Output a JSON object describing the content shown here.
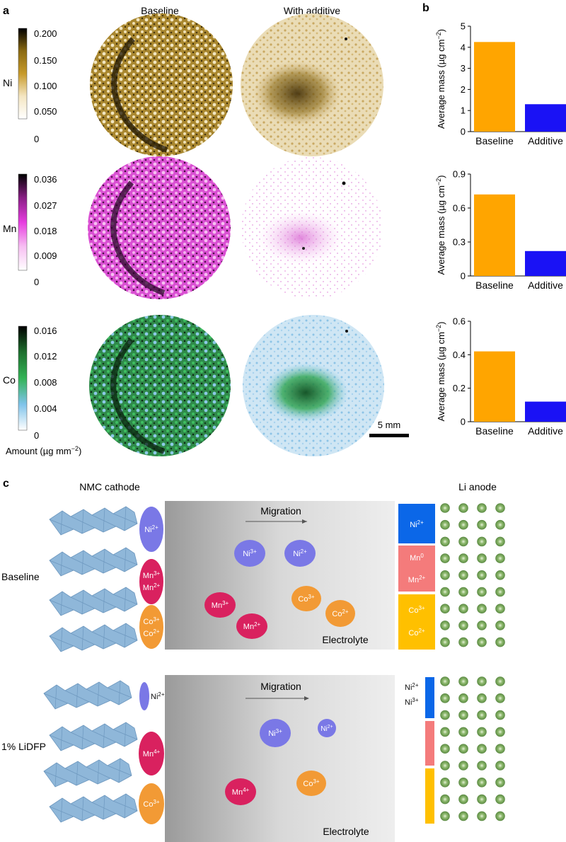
{
  "panel_labels": {
    "a": "a",
    "b": "b",
    "c": "c"
  },
  "panel_a": {
    "col_headers": [
      "Baseline",
      "With additive"
    ],
    "rows": [
      {
        "element": "Ni",
        "ticks": [
          "0.200",
          "0.150",
          "0.100",
          "0.050",
          "0"
        ],
        "colors": [
          "#000000",
          "#8a6a12",
          "#c79a2a",
          "#f4e6c2",
          "#ffffff"
        ]
      },
      {
        "element": "Mn",
        "ticks": [
          "0.036",
          "0.027",
          "0.018",
          "0.009",
          "0"
        ],
        "colors": [
          "#000000",
          "#8a1f86",
          "#e63cdf",
          "#f7bdf2",
          "#ffffff"
        ]
      },
      {
        "element": "Co",
        "ticks": [
          "0.016",
          "0.012",
          "0.008",
          "0.004",
          "0"
        ],
        "colors": [
          "#000000",
          "#1e6f2e",
          "#33b356",
          "#7fc3ea",
          "#ffffff"
        ]
      }
    ],
    "colorbar_title": "Amount (µg mm",
    "colorbar_title_sup": "−2",
    "colorbar_title_end": ")",
    "scale_bar": "5 mm"
  },
  "chart_data": [
    {
      "type": "bar",
      "categories": [
        "Baseline",
        "Additive"
      ],
      "values": [
        4.25,
        1.3
      ],
      "ylabel": "Average mass (µg cm",
      "ylabel_sup": "−2",
      "ylabel_end": ")",
      "ylim": [
        0,
        5
      ],
      "yticks": [
        "0",
        "1",
        "2",
        "3",
        "4",
        "5"
      ],
      "colors": [
        "#ffa500",
        "#1a12f5"
      ],
      "grid": false
    },
    {
      "type": "bar",
      "categories": [
        "Baseline",
        "Additive"
      ],
      "values": [
        0.72,
        0.22
      ],
      "ylabel": "Average mass (µg cm",
      "ylabel_sup": "−2",
      "ylabel_end": ")",
      "ylim": [
        0,
        0.9
      ],
      "yticks": [
        "0",
        "0.3",
        "0.6",
        "0.9"
      ],
      "colors": [
        "#ffa500",
        "#1a12f5"
      ],
      "grid": false
    },
    {
      "type": "bar",
      "categories": [
        "Baseline",
        "Additive"
      ],
      "values": [
        0.42,
        0.12
      ],
      "ylabel": "Average mass (µg cm",
      "ylabel_sup": "−2",
      "ylabel_end": ")",
      "ylim": [
        0,
        0.6
      ],
      "yticks": [
        "0",
        "0.2",
        "0.4",
        "0.6"
      ],
      "colors": [
        "#ffa500",
        "#1a12f5"
      ],
      "grid": false
    }
  ],
  "panel_c": {
    "cathode_label": "NMC cathode",
    "anode_label": "Li anode",
    "migration": "Migration",
    "electrolyte": "Electrolyte",
    "row_labels": [
      "Baseline",
      "1% LiDFP"
    ],
    "colors": {
      "ni": "#7a78e6",
      "mn": "#d9215f",
      "co": "#f29a35",
      "ni_block": "#0b67e8",
      "mn_block": "#f47b7b",
      "co_block": "#ffc000",
      "li": "#6a9a4a"
    },
    "ions": {
      "ni2": {
        "base": "Ni",
        "sup": "2+"
      },
      "ni3": {
        "base": "Ni",
        "sup": "3+"
      },
      "mn3": {
        "base": "Mn",
        "sup": "3+"
      },
      "mn2": {
        "base": "Mn",
        "sup": "2+"
      },
      "mn4": {
        "base": "Mn",
        "sup": "4+"
      },
      "mn0": {
        "base": "Mn",
        "sup": "0"
      },
      "co3": {
        "base": "Co",
        "sup": "3+"
      },
      "co2": {
        "base": "Co",
        "sup": "2+"
      }
    }
  }
}
